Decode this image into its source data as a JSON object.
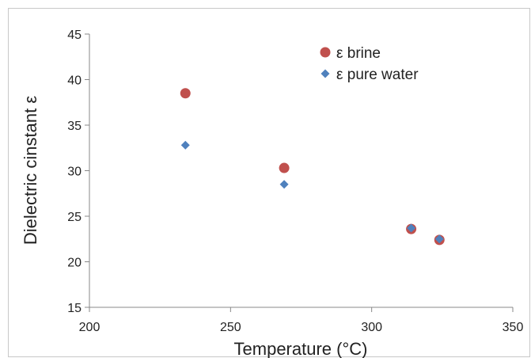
{
  "chart_data": {
    "type": "scatter",
    "xlabel": "Temperature (°C)",
    "ylabel": "Dielectric cinstant ε",
    "xlim": [
      200,
      350
    ],
    "ylim": [
      15,
      45
    ],
    "xticks": [
      200,
      250,
      300,
      350
    ],
    "yticks": [
      15,
      20,
      25,
      30,
      35,
      40,
      45
    ],
    "grid": false,
    "legend_position": "top-right",
    "series": [
      {
        "name": "ε brine",
        "marker": "circle",
        "color": "#c0504d",
        "x": [
          234,
          269,
          314,
          324
        ],
        "y": [
          38.5,
          30.3,
          23.6,
          22.4
        ]
      },
      {
        "name": "ε pure water",
        "marker": "diamond",
        "color": "#4f81bd",
        "x": [
          234,
          269,
          314,
          324
        ],
        "y": [
          32.8,
          28.5,
          23.7,
          22.5
        ]
      }
    ]
  }
}
